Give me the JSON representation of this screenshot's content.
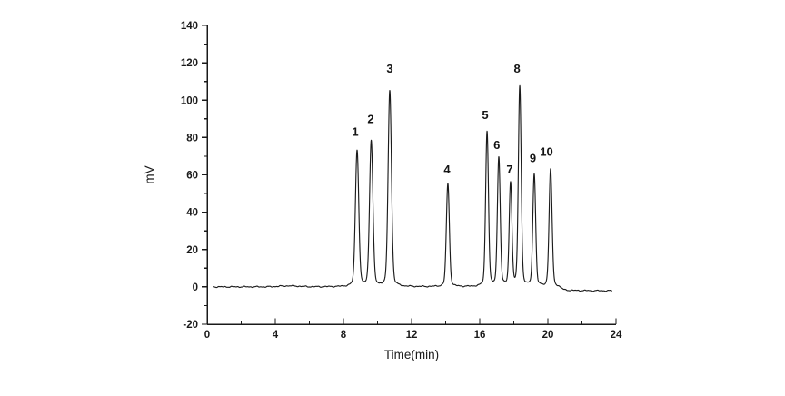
{
  "figure": {
    "background": "#ffffff",
    "trace_color": "#1c1c1c",
    "axis_color": "#1a1a1a",
    "text_color": "#1a1a1a"
  },
  "chart_data": {
    "type": "line",
    "title": "",
    "xlabel": "Time(min)",
    "ylabel": "mV",
    "xlim": [
      0,
      24
    ],
    "ylim": [
      -20,
      140
    ],
    "x_major_ticks": [
      0,
      4,
      8,
      12,
      16,
      20,
      24
    ],
    "x_minor_ticks": [
      2,
      6,
      10,
      14,
      18,
      22
    ],
    "y_major_ticks": [
      -20,
      0,
      20,
      40,
      60,
      80,
      100,
      120,
      140
    ],
    "y_minor_ticks": [
      -10,
      10,
      30,
      50,
      70,
      90,
      110,
      130
    ],
    "grid": false,
    "legend": null,
    "baseline_mv": 0,
    "trace_start_min": 0.35,
    "trace_end_min": 23.75,
    "end_baseline_drop_mv": -2.05,
    "peaks": [
      {
        "label": "1",
        "time_min": 8.8,
        "height_mv": 73,
        "sigma_min": 0.095
      },
      {
        "label": "2",
        "time_min": 9.63,
        "height_mv": 78,
        "sigma_min": 0.095
      },
      {
        "label": "3",
        "time_min": 10.72,
        "height_mv": 105,
        "sigma_min": 0.095
      },
      {
        "label": "4",
        "time_min": 14.13,
        "height_mv": 55,
        "sigma_min": 0.085
      },
      {
        "label": "5",
        "time_min": 16.43,
        "height_mv": 83,
        "sigma_min": 0.08
      },
      {
        "label": "6",
        "time_min": 17.12,
        "height_mv": 69,
        "sigma_min": 0.08
      },
      {
        "label": "7",
        "time_min": 17.81,
        "height_mv": 55,
        "sigma_min": 0.078
      },
      {
        "label": "8",
        "time_min": 18.35,
        "height_mv": 107,
        "sigma_min": 0.08
      },
      {
        "label": "9",
        "time_min": 19.2,
        "height_mv": 60,
        "sigma_min": 0.08
      },
      {
        "label": "10",
        "time_min": 20.16,
        "height_mv": 63,
        "sigma_min": 0.085
      }
    ],
    "peak_annotations": [
      {
        "label": "1",
        "t": 8.69,
        "mv": 83
      },
      {
        "label": "2",
        "t": 9.6,
        "mv": 90
      },
      {
        "label": "3",
        "t": 10.72,
        "mv": 117
      },
      {
        "label": "4",
        "t": 14.08,
        "mv": 63
      },
      {
        "label": "5",
        "t": 16.32,
        "mv": 92
      },
      {
        "label": "6",
        "t": 17.0,
        "mv": 76
      },
      {
        "label": "7",
        "t": 17.76,
        "mv": 63
      },
      {
        "label": "8",
        "t": 18.19,
        "mv": 117
      },
      {
        "label": "9",
        "t": 19.12,
        "mv": 69
      },
      {
        "label": "10",
        "t": 19.92,
        "mv": 72.5
      }
    ]
  }
}
